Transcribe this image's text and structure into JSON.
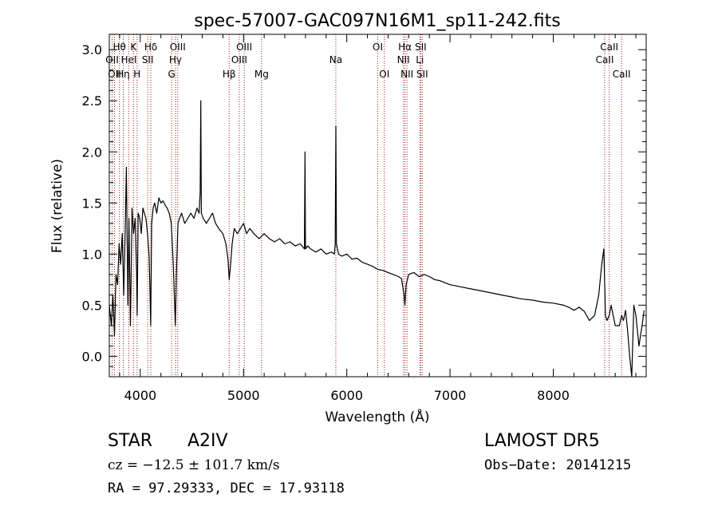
{
  "chart_data": {
    "type": "line",
    "title": "spec-57007-GAC097N16M1_sp11-242.fits",
    "xlabel": "Wavelength (Å)",
    "ylabel": "Flux (relative)",
    "xlim": [
      3700,
      8900
    ],
    "ylim": [
      -0.2,
      3.15
    ],
    "xticks": [
      "4000",
      "5000",
      "6000",
      "7000",
      "8000"
    ],
    "yticks": [
      "0.0",
      "0.5",
      "1.0",
      "1.5",
      "2.0",
      "2.5",
      "3.0"
    ],
    "grid": false,
    "series": [
      {
        "x": [
          3700,
          3720,
          3735,
          3750,
          3765,
          3780,
          3795,
          3810,
          3825,
          3840,
          3855,
          3865,
          3880,
          3890,
          3905,
          3920,
          3935,
          3950,
          3965,
          3970,
          3980,
          3995,
          4010,
          4025,
          4040,
          4055,
          4070,
          4085,
          4095,
          4101,
          4110,
          4125,
          4140,
          4160,
          4180,
          4200,
          4220,
          4240,
          4260,
          4280,
          4300,
          4320,
          4330,
          4340,
          4350,
          4365,
          4380,
          4400,
          4430,
          4460,
          4490,
          4520,
          4550,
          4570,
          4580,
          4586,
          4592,
          4610,
          4640,
          4670,
          4700,
          4730,
          4760,
          4800,
          4830,
          4850,
          4861,
          4875,
          4890,
          4910,
          4940,
          4970,
          5000,
          5030,
          5060,
          5100,
          5150,
          5200,
          5250,
          5300,
          5350,
          5400,
          5450,
          5500,
          5550,
          5590,
          5595,
          5600,
          5620,
          5650,
          5700,
          5750,
          5800,
          5850,
          5880,
          5888,
          5894,
          5900,
          5920,
          5950,
          6000,
          6050,
          6100,
          6150,
          6200,
          6250,
          6300,
          6350,
          6400,
          6450,
          6500,
          6530,
          6555,
          6563,
          6575,
          6600,
          6650,
          6700,
          6750,
          6800,
          6850,
          6900,
          6950,
          7000,
          7100,
          7200,
          7300,
          7400,
          7500,
          7600,
          7700,
          7800,
          7900,
          8000,
          8100,
          8150,
          8200,
          8250,
          8300,
          8350,
          8400,
          8440,
          8470,
          8490,
          8498,
          8505,
          8520,
          8542,
          8560,
          8600,
          8640,
          8662,
          8680,
          8700,
          8720,
          8740,
          8760,
          8780,
          8800,
          8830,
          8860,
          8880
        ],
        "y": [
          0.5,
          0.3,
          0.6,
          0.2,
          0.8,
          0.7,
          1.1,
          0.9,
          1.2,
          0.6,
          1.3,
          1.85,
          0.5,
          1.35,
          0.3,
          1.45,
          1.2,
          1.35,
          0.8,
          0.4,
          1.4,
          1.35,
          1.2,
          1.45,
          1.4,
          1.35,
          1.2,
          1.0,
          0.6,
          0.3,
          1.3,
          1.45,
          1.5,
          1.4,
          1.55,
          1.5,
          1.52,
          1.48,
          1.45,
          1.4,
          1.3,
          0.9,
          0.6,
          0.3,
          0.8,
          1.3,
          1.35,
          1.4,
          1.3,
          1.35,
          1.4,
          1.35,
          1.45,
          1.4,
          1.6,
          2.5,
          1.4,
          1.35,
          1.3,
          1.35,
          1.4,
          1.3,
          1.25,
          1.2,
          1.1,
          0.95,
          0.75,
          0.9,
          1.1,
          1.25,
          1.2,
          1.25,
          1.3,
          1.2,
          1.25,
          1.2,
          1.15,
          1.2,
          1.15,
          1.12,
          1.15,
          1.1,
          1.12,
          1.08,
          1.1,
          1.05,
          2.0,
          1.05,
          1.08,
          1.05,
          1.02,
          1.05,
          1.0,
          1.02,
          1.0,
          1.1,
          2.25,
          1.1,
          1.0,
          0.98,
          1.0,
          0.95,
          0.96,
          0.92,
          0.9,
          0.88,
          0.85,
          0.84,
          0.82,
          0.8,
          0.78,
          0.76,
          0.6,
          0.5,
          0.7,
          0.8,
          0.82,
          0.78,
          0.8,
          0.78,
          0.75,
          0.74,
          0.72,
          0.7,
          0.68,
          0.66,
          0.64,
          0.62,
          0.6,
          0.58,
          0.56,
          0.55,
          0.53,
          0.52,
          0.5,
          0.48,
          0.45,
          0.48,
          0.44,
          0.35,
          0.4,
          0.6,
          0.9,
          1.05,
          0.7,
          0.4,
          0.35,
          0.4,
          0.5,
          0.3,
          0.3,
          0.4,
          0.35,
          0.45,
          0.25,
          0.0,
          -0.2,
          0.5,
          0.4,
          0.1,
          0.3,
          0.45
        ]
      }
    ],
    "line_markers": [
      {
        "wl": 3727,
        "label": "OII",
        "row": 2
      },
      {
        "wl": 3750,
        "label": "OII",
        "row": 3
      },
      {
        "wl": 3798,
        "label": "Hθ",
        "row": 1
      },
      {
        "wl": 3835,
        "label": "Hη",
        "row": 3
      },
      {
        "wl": 3889,
        "label": "HeI",
        "row": 2
      },
      {
        "wl": 3934,
        "label": "K",
        "row": 1
      },
      {
        "wl": 3969,
        "label": "H",
        "row": 3
      },
      {
        "wl": 4072,
        "label": "SII",
        "row": 2
      },
      {
        "wl": 4102,
        "label": "Hδ",
        "row": 1
      },
      {
        "wl": 4304,
        "label": "G",
        "row": 3
      },
      {
        "wl": 4341,
        "label": "Hγ",
        "row": 2
      },
      {
        "wl": 4363,
        "label": "OIII",
        "row": 1
      },
      {
        "wl": 4861,
        "label": "Hβ",
        "row": 3
      },
      {
        "wl": 4959,
        "label": "OIII",
        "row": 2
      },
      {
        "wl": 5007,
        "label": "OIII",
        "row": 1
      },
      {
        "wl": 5175,
        "label": "Mg",
        "row": 3
      },
      {
        "wl": 5894,
        "label": "Na",
        "row": 2
      },
      {
        "wl": 6300,
        "label": "OI",
        "row": 1
      },
      {
        "wl": 6364,
        "label": "OI",
        "row": 3
      },
      {
        "wl": 6548,
        "label": "NII",
        "row": 2
      },
      {
        "wl": 6563,
        "label": "Hα",
        "row": 1
      },
      {
        "wl": 6583,
        "label": "NII",
        "row": 3
      },
      {
        "wl": 6708,
        "label": "Li",
        "row": 2
      },
      {
        "wl": 6716,
        "label": "SII",
        "row": 1
      },
      {
        "wl": 6731,
        "label": "SII",
        "row": 3
      },
      {
        "wl": 8498,
        "label": "CaII",
        "row": 2
      },
      {
        "wl": 8542,
        "label": "CaII",
        "row": 1
      },
      {
        "wl": 8662,
        "label": "CaII",
        "row": 3
      }
    ]
  },
  "info": {
    "object_class": "STAR",
    "subclass": "A2IV",
    "survey": "LAMOST  DR5",
    "cz": "cz = −12.5 ± 101.7 km/s",
    "obs_date": "Obs−Date: 20141215",
    "coords": "RA =  97.29333, DEC =  17.93118"
  },
  "colors": {
    "spectrum": "#000000",
    "marker_line": "#a02020",
    "axis": "#000000"
  }
}
